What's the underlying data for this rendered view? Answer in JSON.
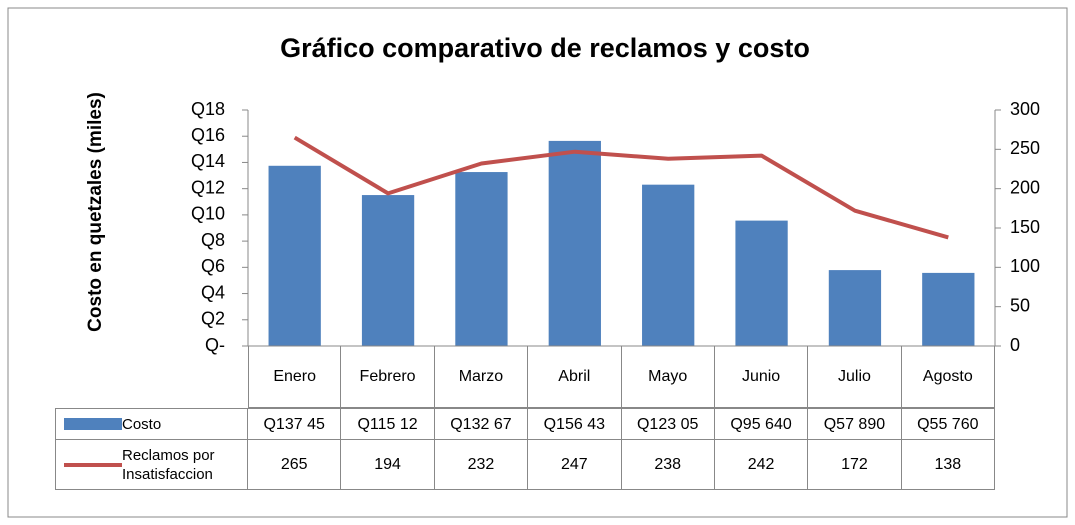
{
  "chart_data": {
    "type": "bar_line",
    "title": "Gráfico comparativo de reclamos y costo",
    "y_label": "Costo en quetzales (miles)",
    "categories": [
      "Enero",
      "Febrero",
      "Marzo",
      "Abril",
      "Mayo",
      "Junio",
      "Julio",
      "Agosto"
    ],
    "series": [
      {
        "name": "Costo",
        "type": "bar",
        "color": "#4f81bd",
        "values": [
          13.745,
          11.512,
          13.267,
          15.643,
          12.305,
          9.564,
          5.789,
          5.576
        ],
        "value_labels": [
          "Q137 45",
          "Q115 12",
          "Q132 67",
          "Q156 43",
          "Q123 05",
          "Q95 640",
          "Q57 890",
          "Q55 760"
        ]
      },
      {
        "name": "Reclamos por Insatisfaccion",
        "type": "line",
        "color": "#c0504d",
        "axis": "y2",
        "values": [
          265,
          194,
          232,
          247,
          238,
          242,
          172,
          138
        ]
      }
    ],
    "ylim": [
      0,
      18
    ],
    "yticks": [
      {
        "value": 0,
        "label": "Q-"
      },
      {
        "value": 2,
        "label": "Q2"
      },
      {
        "value": 4,
        "label": "Q4"
      },
      {
        "value": 6,
        "label": "Q6"
      },
      {
        "value": 8,
        "label": "Q8"
      },
      {
        "value": 10,
        "label": "Q10"
      },
      {
        "value": 12,
        "label": "Q12"
      },
      {
        "value": 14,
        "label": "Q14"
      },
      {
        "value": 16,
        "label": "Q16"
      },
      {
        "value": 18,
        "label": "Q18"
      }
    ],
    "y2lim": [
      0,
      300
    ],
    "y2ticks": [
      0,
      50,
      100,
      150,
      200,
      250,
      300
    ]
  }
}
